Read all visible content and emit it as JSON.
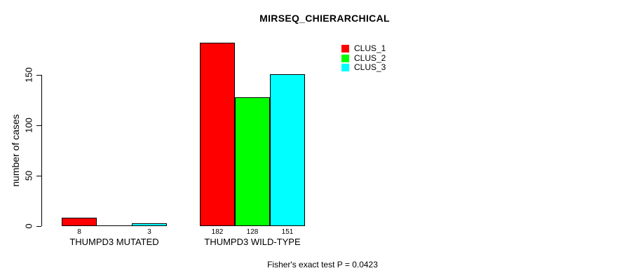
{
  "chart_data": {
    "type": "bar",
    "title": "MIRSEQ_CHIERARCHICAL",
    "xlabel": "",
    "ylabel": "number of cases",
    "ylim": [
      0,
      190
    ],
    "yticks": [
      0,
      50,
      100,
      150
    ],
    "grid": false,
    "legend": {
      "position": "top-right",
      "entries": [
        {
          "label": "CLUS_1",
          "color": "#ff0000"
        },
        {
          "label": "CLUS_2",
          "color": "#00ff00"
        },
        {
          "label": "CLUS_3",
          "color": "#00ffff"
        }
      ]
    },
    "groups": [
      {
        "label": "THUMPD3 MUTATED",
        "bars": [
          {
            "series": "CLUS_1",
            "value": 8,
            "label": "8",
            "color": "#ff0000"
          },
          {
            "series": "CLUS_2",
            "value": 0,
            "label": "",
            "color": "#00ff00"
          },
          {
            "series": "CLUS_3",
            "value": 3,
            "label": "3",
            "color": "#00ffff"
          }
        ]
      },
      {
        "label": "THUMPD3 WILD-TYPE",
        "bars": [
          {
            "series": "CLUS_1",
            "value": 182,
            "label": "182",
            "color": "#ff0000"
          },
          {
            "series": "CLUS_2",
            "value": 128,
            "label": "128",
            "color": "#00ff00"
          },
          {
            "series": "CLUS_3",
            "value": 151,
            "label": "151",
            "color": "#00ffff"
          }
        ]
      }
    ],
    "annotation": "Fisher's exact test P = 0.0423",
    "axis_color": "#000000",
    "bar_border_color": "#000000"
  }
}
